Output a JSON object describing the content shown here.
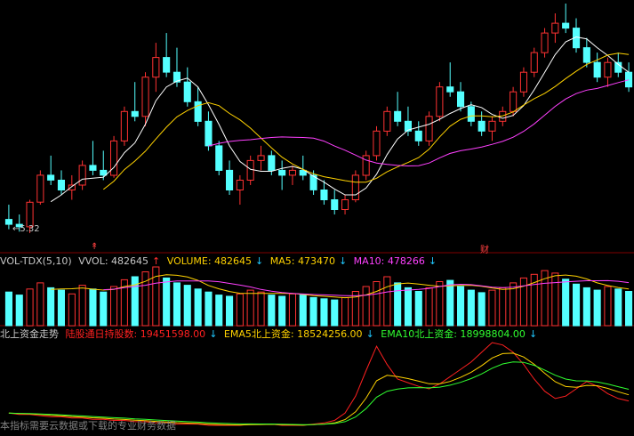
{
  "chart_data": {
    "type": "candlestick",
    "price_low_label": "5.32",
    "event_marker": "财",
    "volume_header": {
      "indicator": "VOL-TDX(5,10)",
      "vvol": "VVOL: 482645",
      "volume": "VOLUME: 482645",
      "ma5": "MA5: 473470",
      "ma10": "MA10: 478266"
    },
    "flow_header": {
      "title": "北上资金走势",
      "holding": "陆股通日持股数: 19451598.00",
      "ema5": "EMA5北上资金: 18524256.00",
      "ema10": "EMA10北上资金: 18998804.00"
    },
    "footer_note": "本指标需要云数据或下载的专业财务数据",
    "candles": [
      [
        5.6,
        5.9,
        5.4,
        5.5
      ],
      [
        5.5,
        5.7,
        5.35,
        5.45
      ],
      [
        5.45,
        6.0,
        5.32,
        5.95
      ],
      [
        5.95,
        6.6,
        5.9,
        6.5
      ],
      [
        6.5,
        6.9,
        6.3,
        6.4
      ],
      [
        6.4,
        6.6,
        6.1,
        6.2
      ],
      [
        6.2,
        6.5,
        6.0,
        6.3
      ],
      [
        6.3,
        6.8,
        6.2,
        6.7
      ],
      [
        6.7,
        7.2,
        6.5,
        6.6
      ],
      [
        6.6,
        7.0,
        6.4,
        6.5
      ],
      [
        6.5,
        7.3,
        6.45,
        7.2
      ],
      [
        7.2,
        7.9,
        7.1,
        7.8
      ],
      [
        7.8,
        8.4,
        7.6,
        7.7
      ],
      [
        7.7,
        8.6,
        7.5,
        8.5
      ],
      [
        8.5,
        9.2,
        8.2,
        8.9
      ],
      [
        8.9,
        9.4,
        8.5,
        8.6
      ],
      [
        8.6,
        9.1,
        8.3,
        8.4
      ],
      [
        8.4,
        8.7,
        7.9,
        8.0
      ],
      [
        8.0,
        8.3,
        7.5,
        7.6
      ],
      [
        7.6,
        7.8,
        7.0,
        7.1
      ],
      [
        7.1,
        7.2,
        6.5,
        6.6
      ],
      [
        6.6,
        6.8,
        6.1,
        6.2
      ],
      [
        6.2,
        6.5,
        5.9,
        6.4
      ],
      [
        6.4,
        6.9,
        6.3,
        6.8
      ],
      [
        6.8,
        7.1,
        6.6,
        6.9
      ],
      [
        6.9,
        7.0,
        6.5,
        6.6
      ],
      [
        6.6,
        6.8,
        6.2,
        6.5
      ],
      [
        6.5,
        6.7,
        6.3,
        6.6
      ],
      [
        6.6,
        6.9,
        6.4,
        6.5
      ],
      [
        6.5,
        6.6,
        6.1,
        6.2
      ],
      [
        6.2,
        6.4,
        5.9,
        6.0
      ],
      [
        6.0,
        6.2,
        5.7,
        5.8
      ],
      [
        5.8,
        6.1,
        5.7,
        6.0
      ],
      [
        6.0,
        6.6,
        5.95,
        6.5
      ],
      [
        6.5,
        7.0,
        6.4,
        6.9
      ],
      [
        6.9,
        7.5,
        6.8,
        7.4
      ],
      [
        7.4,
        7.9,
        7.3,
        7.8
      ],
      [
        7.8,
        8.2,
        7.5,
        7.6
      ],
      [
        7.6,
        7.9,
        7.3,
        7.4
      ],
      [
        7.4,
        7.6,
        7.1,
        7.2
      ],
      [
        7.2,
        7.8,
        7.1,
        7.7
      ],
      [
        7.7,
        8.4,
        7.6,
        8.3
      ],
      [
        8.3,
        8.8,
        8.1,
        8.2
      ],
      [
        8.2,
        8.4,
        7.8,
        7.9
      ],
      [
        7.9,
        8.0,
        7.5,
        7.6
      ],
      [
        7.6,
        7.8,
        7.3,
        7.4
      ],
      [
        7.4,
        7.7,
        7.2,
        7.6
      ],
      [
        7.6,
        7.9,
        7.5,
        7.8
      ],
      [
        7.8,
        8.3,
        7.7,
        8.2
      ],
      [
        8.2,
        8.7,
        8.1,
        8.6
      ],
      [
        8.6,
        9.1,
        8.5,
        9.0
      ],
      [
        9.0,
        9.5,
        8.9,
        9.4
      ],
      [
        9.4,
        9.8,
        9.2,
        9.6
      ],
      [
        9.6,
        10.0,
        9.4,
        9.5
      ],
      [
        9.5,
        9.7,
        9.0,
        9.1
      ],
      [
        9.1,
        9.3,
        8.7,
        8.8
      ],
      [
        8.8,
        9.0,
        8.4,
        8.5
      ],
      [
        8.5,
        8.9,
        8.3,
        8.8
      ],
      [
        8.8,
        9.0,
        8.5,
        8.6
      ],
      [
        8.6,
        8.8,
        8.2,
        8.3
      ]
    ],
    "volumes": [
      55,
      50,
      60,
      70,
      62,
      58,
      52,
      66,
      60,
      55,
      64,
      75,
      80,
      88,
      96,
      78,
      70,
      66,
      60,
      55,
      50,
      48,
      52,
      58,
      55,
      50,
      48,
      52,
      50,
      46,
      44,
      42,
      46,
      56,
      64,
      72,
      80,
      70,
      62,
      56,
      62,
      72,
      74,
      64,
      58,
      54,
      58,
      62,
      70,
      78,
      84,
      90,
      86,
      76,
      68,
      62,
      58,
      64,
      60,
      56
    ],
    "northbound": [
      20,
      19,
      19,
      18,
      17,
      17,
      16,
      16,
      15,
      15,
      14,
      14,
      13,
      13,
      12,
      12,
      11,
      11,
      11,
      10,
      10,
      10,
      10,
      11,
      11,
      11,
      10,
      10,
      10,
      11,
      12,
      14,
      20,
      34,
      55,
      75,
      60,
      48,
      45,
      42,
      40,
      44,
      50,
      56,
      62,
      70,
      78,
      76,
      70,
      60,
      48,
      38,
      32,
      34,
      40,
      46,
      42,
      36,
      32,
      30
    ]
  }
}
